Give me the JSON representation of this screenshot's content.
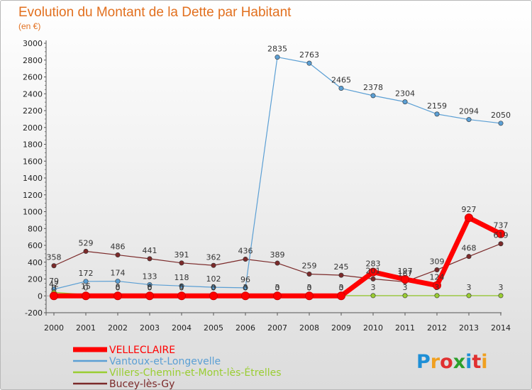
{
  "header": {
    "title": "Evolution du Montant de la Dette par Habitant",
    "unit": "(en €)"
  },
  "logo": {
    "text": "Proxiti",
    "letter_colors": [
      "#1e8fd6",
      "#f0a020",
      "#e03030",
      "#2ca02c",
      "#1e8fd6",
      "#e03030",
      "#f0a020"
    ]
  },
  "chart_data": {
    "type": "line",
    "x": [
      "2000",
      "2001",
      "2002",
      "2003",
      "2004",
      "2005",
      "2006",
      "2007",
      "2008",
      "2009",
      "2010",
      "2011",
      "2012",
      "2013",
      "2014"
    ],
    "ylim": [
      -200,
      3000
    ],
    "yticks": [
      -200,
      0,
      200,
      400,
      600,
      800,
      1000,
      1200,
      1400,
      1600,
      1800,
      2000,
      2200,
      2400,
      2600,
      2800,
      3000
    ],
    "grid": false,
    "legend_position": "bottom-left",
    "series": [
      {
        "name": "VELLECLAIRE",
        "color": "#ff0000",
        "values": [
          0,
          0,
          0,
          0,
          0,
          0,
          0,
          0,
          0,
          0,
          283,
          197,
          124,
          927,
          737
        ],
        "labels": [
          "0",
          "0",
          "0",
          "0",
          "0",
          "0",
          "0",
          "0",
          "0",
          "0",
          "283",
          "197",
          "124",
          "927",
          "737"
        ]
      },
      {
        "name": "Vantoux-et-Longevelle",
        "color": "#5b9fd4",
        "values": [
          79,
          172,
          174,
          133,
          118,
          102,
          96,
          2835,
          2763,
          2465,
          2378,
          2304,
          2159,
          2094,
          2050
        ],
        "labels": [
          "79",
          "172",
          "174",
          "133",
          "118",
          "102",
          "96",
          "2835",
          "2763",
          "2465",
          "2378",
          "2304",
          "2159",
          "2094",
          "2050"
        ]
      },
      {
        "name": "Villers-Chemin-et-Mont-lès-Étrelles",
        "color": "#9acd32",
        "values": [
          42,
          15,
          8,
          6,
          5,
          3,
          3,
          3,
          3,
          3,
          3,
          3,
          3,
          3,
          3
        ],
        "labels": [
          "42",
          "15",
          "8",
          "6",
          "5",
          "3",
          "3",
          "3",
          "3",
          "3",
          "3",
          "3",
          "3",
          "3",
          "3"
        ]
      },
      {
        "name": "Bucey-lès-Gy",
        "color": "#7b2a2a",
        "values": [
          358,
          529,
          486,
          441,
          391,
          362,
          436,
          389,
          259,
          245,
          201,
          167,
          309,
          468,
          619
        ],
        "labels": [
          "358",
          "529",
          "486",
          "441",
          "391",
          "362",
          "436",
          "389",
          "259",
          "245",
          "201",
          "167",
          "309",
          "468",
          "619"
        ]
      }
    ]
  }
}
